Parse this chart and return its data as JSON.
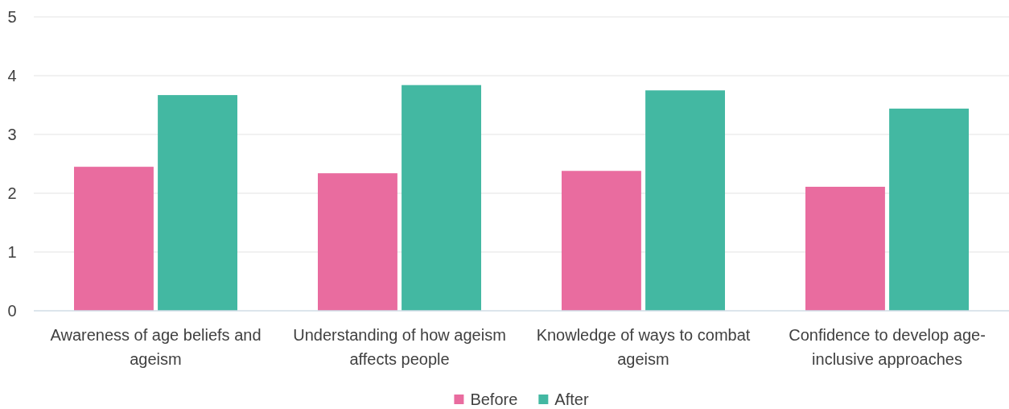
{
  "chart_data": {
    "type": "bar",
    "categories": [
      "Awareness of age beliefs and ageism",
      "Understanding of how ageism affects people",
      "Knowledge of ways to combat ageism",
      "Confidence to develop age-inclusive approaches"
    ],
    "series": [
      {
        "name": "Before",
        "color": "#e96c9f",
        "values": [
          2.45,
          2.34,
          2.38,
          2.11
        ]
      },
      {
        "name": "After",
        "color": "#43b8a2",
        "values": [
          3.67,
          3.84,
          3.75,
          3.44
        ]
      }
    ],
    "ylim": [
      0,
      5
    ],
    "yticks": [
      0,
      1,
      2,
      3,
      4,
      5
    ],
    "grid": "y",
    "legend": "bottom"
  }
}
